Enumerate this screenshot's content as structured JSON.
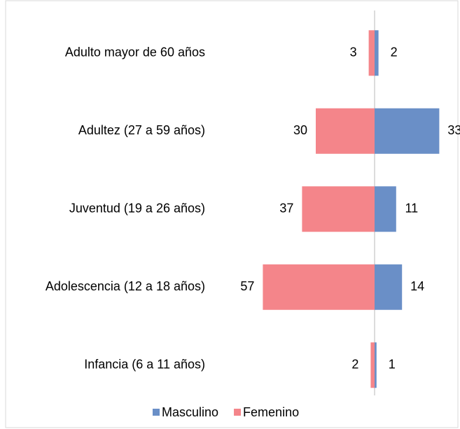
{
  "chart_data": {
    "type": "bar",
    "orientation": "diverging",
    "categories": [
      "Adulto mayor de 60 años",
      "Adultez (27 a 59 años)",
      "Juventud (19 a 26 años)",
      "Adolescencia (12 a 18 años)",
      "Infancia (6 a 11 años)"
    ],
    "series": [
      {
        "name": "Masculino",
        "color": "#6a8fc7",
        "values": [
          2,
          33,
          11,
          14,
          1
        ]
      },
      {
        "name": "Femenino",
        "color": "#f4858a",
        "values": [
          3,
          30,
          37,
          57,
          2
        ]
      }
    ],
    "legend": "bottom"
  }
}
